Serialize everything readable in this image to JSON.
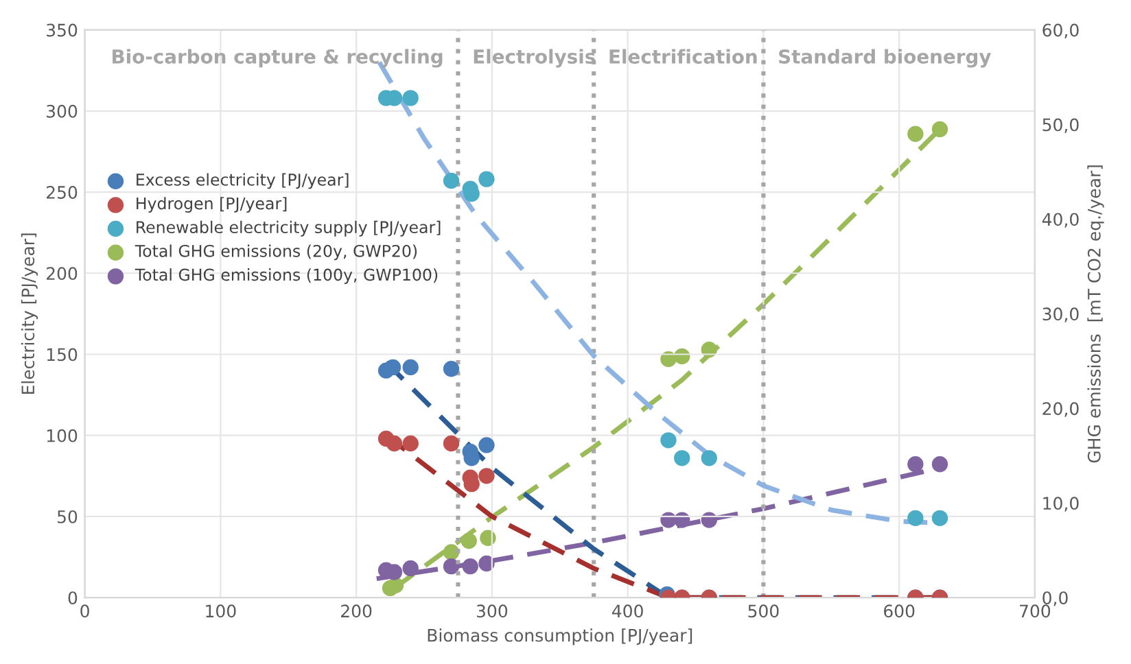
{
  "chart_data": {
    "type": "scatter",
    "xlabel": "Biomass consumption [PJ/year]",
    "ylabel": "Electricity [PJ/year]",
    "y2label": "GHG emissions  [mT CO2 eq./year]",
    "xlim": [
      0,
      700
    ],
    "xticks": [
      0,
      100,
      200,
      300,
      400,
      500,
      600,
      700
    ],
    "ylim": [
      0,
      350
    ],
    "yticks": [
      0,
      50,
      100,
      150,
      200,
      250,
      300,
      350
    ],
    "y2lim": [
      0,
      60
    ],
    "y2ticks": [
      {
        "value": 0,
        "label": "0,0"
      },
      {
        "value": 10,
        "label": "10,0"
      },
      {
        "value": 20,
        "label": "20,0"
      },
      {
        "value": 30,
        "label": "30,0"
      },
      {
        "value": 40,
        "label": "40,0"
      },
      {
        "value": 50,
        "label": "50,0"
      },
      {
        "value": 60,
        "label": "60,0"
      }
    ],
    "grid": true,
    "legend": "center left",
    "marker": "circle",
    "series": [
      {
        "type": "line",
        "line_style": "dashed",
        "marker": "none",
        "color": "#8db3e2",
        "x": [
          217,
          250,
          288,
          330,
          375,
          420,
          460,
          500,
          550,
          600,
          630
        ],
        "values": [
          330,
          283,
          236,
          195,
          149,
          115,
          88,
          69,
          54,
          47,
          46
        ]
      },
      {
        "type": "line",
        "line_style": "dashed",
        "marker": "none",
        "color": "#9bbb59",
        "axis": "y2",
        "x": [
          228,
          300,
          375,
          440,
          500,
          560,
          630
        ],
        "values": [
          1,
          8.5,
          15.9,
          23,
          31,
          39.5,
          49.5
        ]
      },
      {
        "type": "line",
        "line_style": "dashed",
        "marker": "none",
        "color": "#8064a2",
        "axis": "y2",
        "x": [
          215,
          300,
          375,
          500,
          630
        ],
        "values": [
          2.0,
          3.9,
          5.8,
          9.4,
          13.7
        ]
      },
      {
        "type": "line",
        "line_style": "dashed",
        "marker": "none",
        "color": "#2c5d96",
        "x": [
          222,
          300,
          375,
          430,
          630
        ],
        "values": [
          145,
          80,
          30,
          0,
          0
        ]
      },
      {
        "type": "line",
        "line_style": "dashed",
        "marker": "none",
        "color": "#a5302d",
        "x": [
          222,
          300,
          375,
          430,
          630
        ],
        "values": [
          100,
          50,
          18,
          0,
          0
        ]
      },
      {
        "name": "Excess electricity [PJ/year]",
        "color": "#4a7ebb",
        "x": [
          222,
          227,
          240,
          270,
          284,
          285,
          296,
          429,
          440,
          460,
          612,
          630
        ],
        "values": [
          140,
          142,
          142,
          141,
          90,
          86,
          94,
          2,
          0,
          0,
          0,
          0
        ]
      },
      {
        "name": "Hydrogen [PJ/year]",
        "color": "#c0504d",
        "x": [
          222,
          228,
          240,
          270,
          284,
          285,
          296,
          430,
          440,
          460,
          612,
          630
        ],
        "values": [
          98,
          95,
          95,
          95,
          74,
          70,
          75,
          0,
          0,
          0,
          0,
          0
        ]
      },
      {
        "name": "Renewable electricity supply [PJ/year]",
        "color": "#4bacc6",
        "x": [
          222,
          228,
          240,
          270,
          284,
          285,
          296,
          430,
          440,
          460,
          612,
          630
        ],
        "values": [
          308,
          308,
          308,
          257,
          252,
          249,
          258,
          97,
          86,
          86,
          49,
          49
        ]
      },
      {
        "name": "Total GHG emissions (20y, GWP20)",
        "color": "#9bbb59",
        "axis": "y2",
        "x": [
          225,
          229,
          270,
          283,
          297,
          430,
          440,
          460,
          612,
          630
        ],
        "values": [
          1.0,
          1.3,
          4.8,
          6.0,
          6.3,
          25.2,
          25.5,
          26.2,
          49.0,
          49.5
        ]
      },
      {
        "name": "Total GHG emissions (100y, GWP100)",
        "color": "#8064a2",
        "axis": "y2",
        "x": [
          222,
          228,
          240,
          270,
          284,
          296,
          430,
          440,
          460,
          612,
          630
        ],
        "values": [
          2.9,
          2.7,
          3.1,
          3.3,
          3.3,
          3.6,
          8.2,
          8.2,
          8.2,
          14.1,
          14.1
        ]
      }
    ],
    "ref_lines": [
      {
        "axis": "x",
        "value": 275,
        "color": "#a6a6a6",
        "line_style": "dotted"
      },
      {
        "axis": "x",
        "value": 375,
        "color": "#a6a6a6",
        "line_style": "dotted"
      },
      {
        "axis": "x",
        "value": 500,
        "color": "#a6a6a6",
        "line_style": "dotted"
      }
    ],
    "annotations": [
      "Bio-carbon capture & recycling",
      "Electrolysis",
      "Electrification",
      "Standard bioenergy"
    ]
  }
}
